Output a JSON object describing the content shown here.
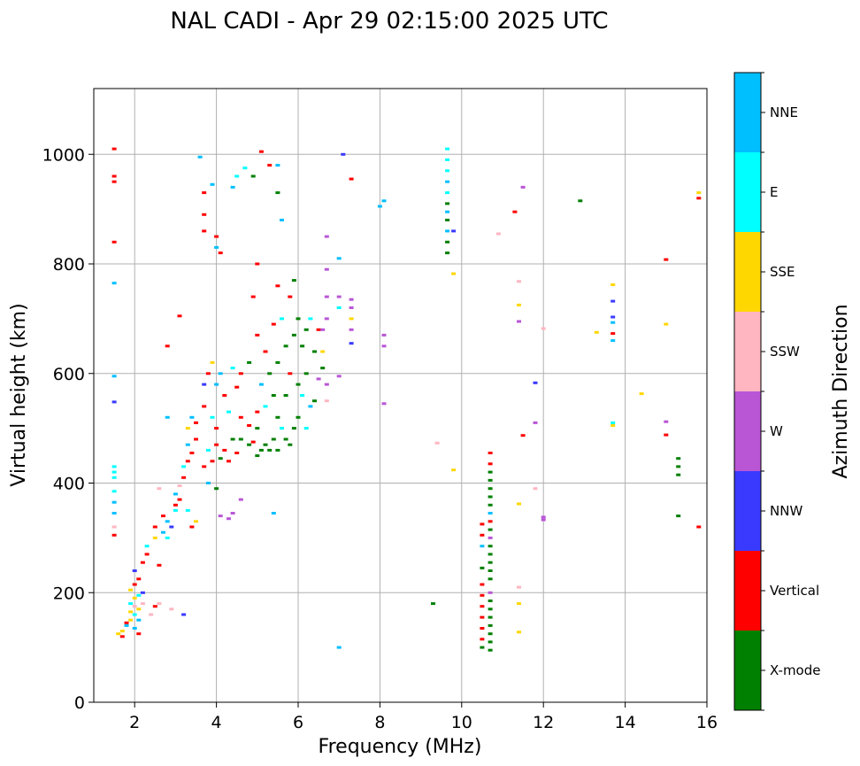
{
  "chart_data": {
    "type": "scatter",
    "title": "NAL CADI - Apr 29 02:15:00 2025 UTC",
    "xlabel": "Frequency (MHz)",
    "ylabel": "Virtual height (km)",
    "xlim": [
      1,
      16
    ],
    "ylim": [
      0,
      1120
    ],
    "xticks": [
      2,
      4,
      6,
      8,
      10,
      12,
      14,
      16
    ],
    "yticks": [
      0,
      200,
      400,
      600,
      800,
      1000
    ],
    "grid": true,
    "colorbar": {
      "title": "Azimuth Direction",
      "categories": [
        {
          "name": "X-mode",
          "color": "#008000"
        },
        {
          "name": "Vertical",
          "color": "#ff0000"
        },
        {
          "name": "NNW",
          "color": "#3a3aff"
        },
        {
          "name": "W",
          "color": "#b956d6"
        },
        {
          "name": "SSW",
          "color": "#ffb6c1"
        },
        {
          "name": "SSE",
          "color": "#ffd700"
        },
        {
          "name": "E",
          "color": "#00ffff"
        },
        {
          "name": "NNE",
          "color": "#00bfff"
        }
      ]
    },
    "points": [
      [
        1.5,
        1010,
        "Vertical"
      ],
      [
        1.5,
        960,
        "Vertical"
      ],
      [
        1.5,
        950,
        "Vertical"
      ],
      [
        1.5,
        840,
        "Vertical"
      ],
      [
        1.5,
        765,
        "NNE"
      ],
      [
        1.5,
        595,
        "NNE"
      ],
      [
        1.5,
        548,
        "NNW"
      ],
      [
        1.5,
        430,
        "E"
      ],
      [
        1.5,
        420,
        "E"
      ],
      [
        1.5,
        410,
        "E"
      ],
      [
        1.5,
        385,
        "E"
      ],
      [
        1.5,
        365,
        "NNE"
      ],
      [
        1.5,
        345,
        "NNE"
      ],
      [
        1.5,
        320,
        "SSW"
      ],
      [
        1.5,
        305,
        "Vertical"
      ],
      [
        1.6,
        125,
        "SSE"
      ],
      [
        1.7,
        130,
        "SSE"
      ],
      [
        1.7,
        120,
        "Vertical"
      ],
      [
        1.8,
        140,
        "NNE"
      ],
      [
        1.8,
        145,
        "Vertical"
      ],
      [
        1.9,
        150,
        "SSE"
      ],
      [
        1.9,
        165,
        "SSE"
      ],
      [
        1.9,
        180,
        "E"
      ],
      [
        1.9,
        205,
        "SSE"
      ],
      [
        2.0,
        135,
        "NNE"
      ],
      [
        2.0,
        160,
        "E"
      ],
      [
        2.0,
        175,
        "SSW"
      ],
      [
        2.0,
        190,
        "SSE"
      ],
      [
        2.0,
        215,
        "Vertical"
      ],
      [
        2.0,
        240,
        "NNW"
      ],
      [
        2.1,
        125,
        "Vertical"
      ],
      [
        2.1,
        150,
        "NNE"
      ],
      [
        2.1,
        170,
        "SSE"
      ],
      [
        2.1,
        195,
        "E"
      ],
      [
        2.1,
        225,
        "Vertical"
      ],
      [
        2.2,
        180,
        "SSW"
      ],
      [
        2.2,
        200,
        "NNW"
      ],
      [
        2.2,
        255,
        "Vertical"
      ],
      [
        2.3,
        270,
        "Vertical"
      ],
      [
        2.3,
        285,
        "E"
      ],
      [
        2.4,
        160,
        "SSW"
      ],
      [
        2.5,
        175,
        "Vertical"
      ],
      [
        2.5,
        300,
        "SSE"
      ],
      [
        2.5,
        320,
        "Vertical"
      ],
      [
        2.6,
        250,
        "Vertical"
      ],
      [
        2.6,
        180,
        "SSW"
      ],
      [
        2.6,
        390,
        "SSW"
      ],
      [
        2.7,
        310,
        "NNE"
      ],
      [
        2.7,
        340,
        "Vertical"
      ],
      [
        2.8,
        300,
        "E"
      ],
      [
        2.8,
        330,
        "NNE"
      ],
      [
        2.8,
        650,
        "Vertical"
      ],
      [
        2.8,
        520,
        "NNE"
      ],
      [
        2.9,
        170,
        "SSW"
      ],
      [
        2.9,
        320,
        "NNW"
      ],
      [
        3.0,
        350,
        "E"
      ],
      [
        3.0,
        360,
        "Vertical"
      ],
      [
        3.0,
        380,
        "NNE"
      ],
      [
        3.1,
        370,
        "Vertical"
      ],
      [
        3.1,
        395,
        "SSW"
      ],
      [
        3.1,
        705,
        "Vertical"
      ],
      [
        3.2,
        160,
        "NNW"
      ],
      [
        3.2,
        410,
        "Vertical"
      ],
      [
        3.2,
        430,
        "E"
      ],
      [
        3.3,
        440,
        "Vertical"
      ],
      [
        3.3,
        470,
        "NNE"
      ],
      [
        3.3,
        500,
        "SSE"
      ],
      [
        3.3,
        350,
        "E"
      ],
      [
        3.4,
        455,
        "Vertical"
      ],
      [
        3.4,
        520,
        "NNE"
      ],
      [
        3.4,
        320,
        "Vertical"
      ],
      [
        3.5,
        480,
        "Vertical"
      ],
      [
        3.5,
        510,
        "Vertical"
      ],
      [
        3.5,
        330,
        "SSE"
      ],
      [
        3.6,
        995,
        "NNE"
      ],
      [
        3.7,
        430,
        "Vertical"
      ],
      [
        3.7,
        540,
        "Vertical"
      ],
      [
        3.7,
        580,
        "NNW"
      ],
      [
        3.7,
        930,
        "Vertical"
      ],
      [
        3.7,
        890,
        "Vertical"
      ],
      [
        3.7,
        860,
        "Vertical"
      ],
      [
        3.8,
        460,
        "E"
      ],
      [
        3.8,
        600,
        "Vertical"
      ],
      [
        3.8,
        400,
        "NNE"
      ],
      [
        3.9,
        440,
        "Vertical"
      ],
      [
        3.9,
        520,
        "E"
      ],
      [
        3.9,
        620,
        "SSE"
      ],
      [
        3.9,
        945,
        "NNE"
      ],
      [
        4.0,
        470,
        "Vertical"
      ],
      [
        4.0,
        500,
        "Vertical"
      ],
      [
        4.0,
        580,
        "NNE"
      ],
      [
        4.0,
        830,
        "NNE"
      ],
      [
        4.0,
        850,
        "Vertical"
      ],
      [
        4.0,
        390,
        "X-mode"
      ],
      [
        4.1,
        340,
        "W"
      ],
      [
        4.1,
        445,
        "X-mode"
      ],
      [
        4.1,
        600,
        "NNE"
      ],
      [
        4.1,
        820,
        "Vertical"
      ],
      [
        4.2,
        460,
        "Vertical"
      ],
      [
        4.2,
        560,
        "Vertical"
      ],
      [
        4.3,
        335,
        "W"
      ],
      [
        4.3,
        440,
        "Vertical"
      ],
      [
        4.3,
        530,
        "E"
      ],
      [
        4.4,
        345,
        "W"
      ],
      [
        4.4,
        480,
        "X-mode"
      ],
      [
        4.4,
        610,
        "E"
      ],
      [
        4.4,
        940,
        "NNE"
      ],
      [
        4.5,
        455,
        "Vertical"
      ],
      [
        4.5,
        575,
        "Vertical"
      ],
      [
        4.5,
        960,
        "E"
      ],
      [
        4.6,
        370,
        "W"
      ],
      [
        4.6,
        480,
        "X-mode"
      ],
      [
        4.6,
        520,
        "Vertical"
      ],
      [
        4.6,
        600,
        "Vertical"
      ],
      [
        4.7,
        975,
        "E"
      ],
      [
        4.8,
        470,
        "X-mode"
      ],
      [
        4.8,
        505,
        "Vertical"
      ],
      [
        4.8,
        620,
        "X-mode"
      ],
      [
        4.9,
        475,
        "Vertical"
      ],
      [
        4.9,
        740,
        "Vertical"
      ],
      [
        4.9,
        960,
        "X-mode"
      ],
      [
        5.0,
        450,
        "X-mode"
      ],
      [
        5.0,
        500,
        "X-mode"
      ],
      [
        5.0,
        530,
        "Vertical"
      ],
      [
        5.0,
        670,
        "Vertical"
      ],
      [
        5.0,
        800,
        "Vertical"
      ],
      [
        5.1,
        460,
        "X-mode"
      ],
      [
        5.1,
        580,
        "NNE"
      ],
      [
        5.1,
        1005,
        "Vertical"
      ],
      [
        5.2,
        470,
        "X-mode"
      ],
      [
        5.2,
        540,
        "E"
      ],
      [
        5.2,
        640,
        "Vertical"
      ],
      [
        5.3,
        460,
        "X-mode"
      ],
      [
        5.3,
        600,
        "X-mode"
      ],
      [
        5.3,
        980,
        "Vertical"
      ],
      [
        5.4,
        345,
        "NNE"
      ],
      [
        5.4,
        480,
        "X-mode"
      ],
      [
        5.4,
        560,
        "X-mode"
      ],
      [
        5.4,
        690,
        "Vertical"
      ],
      [
        5.5,
        460,
        "X-mode"
      ],
      [
        5.5,
        520,
        "X-mode"
      ],
      [
        5.5,
        620,
        "X-mode"
      ],
      [
        5.5,
        760,
        "Vertical"
      ],
      [
        5.5,
        930,
        "X-mode"
      ],
      [
        5.5,
        980,
        "NNE"
      ],
      [
        5.6,
        500,
        "E"
      ],
      [
        5.6,
        700,
        "E"
      ],
      [
        5.6,
        880,
        "NNE"
      ],
      [
        5.7,
        480,
        "X-mode"
      ],
      [
        5.7,
        560,
        "X-mode"
      ],
      [
        5.7,
        650,
        "X-mode"
      ],
      [
        5.8,
        470,
        "X-mode"
      ],
      [
        5.8,
        600,
        "Vertical"
      ],
      [
        5.8,
        740,
        "Vertical"
      ],
      [
        5.9,
        500,
        "X-mode"
      ],
      [
        5.9,
        670,
        "X-mode"
      ],
      [
        5.9,
        770,
        "X-mode"
      ],
      [
        6.0,
        520,
        "X-mode"
      ],
      [
        6.0,
        580,
        "X-mode"
      ],
      [
        6.0,
        700,
        "X-mode"
      ],
      [
        6.1,
        560,
        "E"
      ],
      [
        6.1,
        650,
        "X-mode"
      ],
      [
        6.2,
        500,
        "E"
      ],
      [
        6.2,
        600,
        "X-mode"
      ],
      [
        6.2,
        680,
        "X-mode"
      ],
      [
        6.3,
        540,
        "NNE"
      ],
      [
        6.3,
        700,
        "E"
      ],
      [
        6.4,
        640,
        "X-mode"
      ],
      [
        6.4,
        550,
        "X-mode"
      ],
      [
        6.5,
        590,
        "W"
      ],
      [
        6.5,
        680,
        "Vertical"
      ],
      [
        6.6,
        610,
        "X-mode"
      ],
      [
        6.6,
        640,
        "SSE"
      ],
      [
        6.6,
        680,
        "W"
      ],
      [
        6.7,
        700,
        "W"
      ],
      [
        6.7,
        740,
        "W"
      ],
      [
        6.7,
        790,
        "W"
      ],
      [
        6.7,
        850,
        "W"
      ],
      [
        6.7,
        580,
        "W"
      ],
      [
        6.7,
        550,
        "SSW"
      ],
      [
        7.0,
        740,
        "W"
      ],
      [
        7.0,
        720,
        "E"
      ],
      [
        7.0,
        595,
        "W"
      ],
      [
        7.0,
        810,
        "NNE"
      ],
      [
        7.0,
        100,
        "NNE"
      ],
      [
        7.1,
        1000,
        "NNW"
      ],
      [
        7.3,
        955,
        "Vertical"
      ],
      [
        7.3,
        735,
        "W"
      ],
      [
        7.3,
        720,
        "W"
      ],
      [
        7.3,
        700,
        "SSE"
      ],
      [
        7.3,
        680,
        "W"
      ],
      [
        7.3,
        655,
        "NNW"
      ],
      [
        8.0,
        905,
        "NNE"
      ],
      [
        8.1,
        915,
        "NNE"
      ],
      [
        8.1,
        670,
        "W"
      ],
      [
        8.1,
        650,
        "W"
      ],
      [
        8.1,
        545,
        "W"
      ],
      [
        9.3,
        180,
        "X-mode"
      ],
      [
        9.4,
        473,
        "SSW"
      ],
      [
        9.65,
        1010,
        "E"
      ],
      [
        9.65,
        990,
        "E"
      ],
      [
        9.65,
        970,
        "E"
      ],
      [
        9.65,
        950,
        "NNE"
      ],
      [
        9.65,
        930,
        "E"
      ],
      [
        9.65,
        910,
        "X-mode"
      ],
      [
        9.65,
        895,
        "NNE"
      ],
      [
        9.65,
        880,
        "X-mode"
      ],
      [
        9.65,
        860,
        "NNE"
      ],
      [
        9.65,
        840,
        "X-mode"
      ],
      [
        9.65,
        820,
        "X-mode"
      ],
      [
        9.8,
        860,
        "NNW"
      ],
      [
        9.8,
        782,
        "SSE"
      ],
      [
        9.8,
        424,
        "SSE"
      ],
      [
        10.5,
        325,
        "Vertical"
      ],
      [
        10.5,
        305,
        "Vertical"
      ],
      [
        10.5,
        285,
        "NNE"
      ],
      [
        10.5,
        245,
        "X-mode"
      ],
      [
        10.5,
        215,
        "Vertical"
      ],
      [
        10.5,
        195,
        "Vertical"
      ],
      [
        10.5,
        175,
        "Vertical"
      ],
      [
        10.5,
        155,
        "Vertical"
      ],
      [
        10.5,
        135,
        "Vertical"
      ],
      [
        10.5,
        115,
        "Vertical"
      ],
      [
        10.5,
        100,
        "X-mode"
      ],
      [
        10.7,
        455,
        "Vertical"
      ],
      [
        10.7,
        435,
        "Vertical"
      ],
      [
        10.7,
        420,
        "X-mode"
      ],
      [
        10.7,
        405,
        "X-mode"
      ],
      [
        10.7,
        390,
        "X-mode"
      ],
      [
        10.7,
        375,
        "X-mode"
      ],
      [
        10.7,
        360,
        "X-mode"
      ],
      [
        10.7,
        345,
        "NNE"
      ],
      [
        10.7,
        330,
        "Vertical"
      ],
      [
        10.7,
        315,
        "X-mode"
      ],
      [
        10.7,
        300,
        "W"
      ],
      [
        10.7,
        285,
        "X-mode"
      ],
      [
        10.7,
        270,
        "X-mode"
      ],
      [
        10.7,
        255,
        "X-mode"
      ],
      [
        10.7,
        240,
        "X-mode"
      ],
      [
        10.7,
        225,
        "X-mode"
      ],
      [
        10.7,
        200,
        "W"
      ],
      [
        10.7,
        185,
        "X-mode"
      ],
      [
        10.7,
        170,
        "X-mode"
      ],
      [
        10.7,
        155,
        "X-mode"
      ],
      [
        10.7,
        140,
        "X-mode"
      ],
      [
        10.7,
        125,
        "X-mode"
      ],
      [
        10.7,
        110,
        "X-mode"
      ],
      [
        10.7,
        95,
        "X-mode"
      ],
      [
        10.9,
        855,
        "SSW"
      ],
      [
        11.3,
        895,
        "Vertical"
      ],
      [
        11.4,
        768,
        "SSW"
      ],
      [
        11.4,
        725,
        "SSE"
      ],
      [
        11.4,
        695,
        "W"
      ],
      [
        11.4,
        362,
        "SSE"
      ],
      [
        11.4,
        210,
        "SSW"
      ],
      [
        11.4,
        180,
        "SSE"
      ],
      [
        11.4,
        128,
        "SSE"
      ],
      [
        11.5,
        940,
        "W"
      ],
      [
        11.5,
        487,
        "Vertical"
      ],
      [
        11.8,
        583,
        "NNW"
      ],
      [
        11.8,
        510,
        "W"
      ],
      [
        11.8,
        390,
        "SSW"
      ],
      [
        12.0,
        682,
        "SSW"
      ],
      [
        12.0,
        338,
        "W"
      ],
      [
        12.0,
        333,
        "W"
      ],
      [
        12.9,
        915,
        "X-mode"
      ],
      [
        13.3,
        675,
        "SSE"
      ],
      [
        13.7,
        762,
        "SSE"
      ],
      [
        13.7,
        732,
        "NNW"
      ],
      [
        13.7,
        703,
        "NNW"
      ],
      [
        13.7,
        693,
        "NNE"
      ],
      [
        13.7,
        673,
        "Vertical"
      ],
      [
        13.7,
        660,
        "NNE"
      ],
      [
        13.7,
        510,
        "E"
      ],
      [
        13.7,
        505,
        "SSE"
      ],
      [
        14.4,
        563,
        "SSE"
      ],
      [
        15.0,
        808,
        "Vertical"
      ],
      [
        15.0,
        690,
        "SSE"
      ],
      [
        15.0,
        512,
        "W"
      ],
      [
        15.0,
        488,
        "Vertical"
      ],
      [
        15.3,
        445,
        "X-mode"
      ],
      [
        15.3,
        430,
        "X-mode"
      ],
      [
        15.3,
        415,
        "X-mode"
      ],
      [
        15.3,
        340,
        "X-mode"
      ],
      [
        15.8,
        930,
        "SSE"
      ],
      [
        15.8,
        920,
        "Vertical"
      ],
      [
        15.8,
        320,
        "Vertical"
      ]
    ]
  }
}
